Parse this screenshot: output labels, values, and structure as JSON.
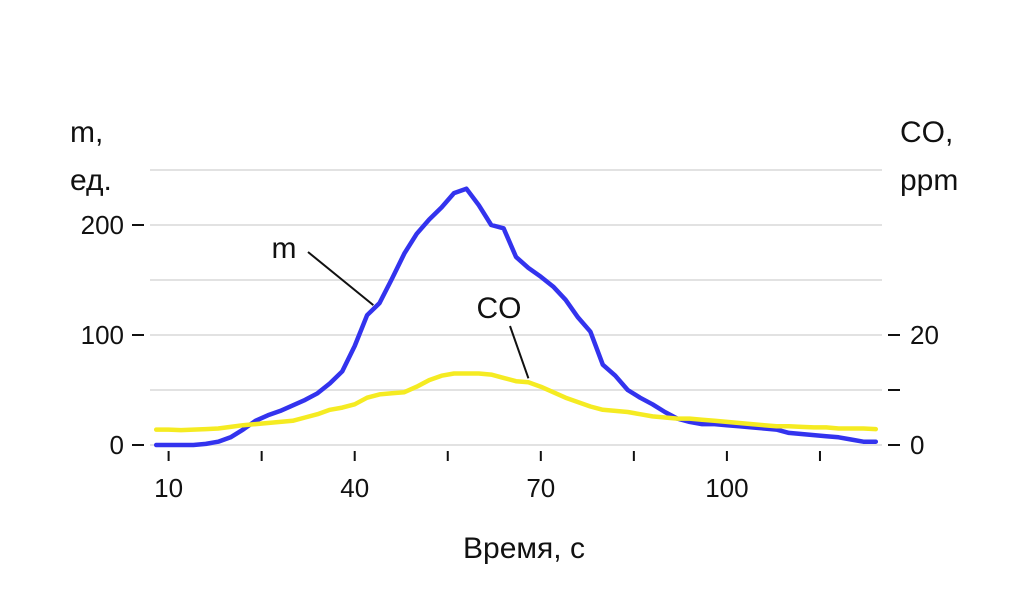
{
  "chart_data": {
    "type": "line",
    "xlabel": "Время, с",
    "ylabel_left": [
      "m,",
      "ед."
    ],
    "ylabel_right": [
      "CO,",
      "ppm"
    ],
    "xlim": [
      7,
      125
    ],
    "ylim_left": [
      0,
      250
    ],
    "ylim_right": [
      0,
      50
    ],
    "x_ticks": [
      10,
      25,
      40,
      55,
      70,
      85,
      100,
      115
    ],
    "x_tick_labels": [
      "10",
      "",
      "40",
      "",
      "70",
      "",
      "100",
      ""
    ],
    "y_left_ticks": [
      0,
      100,
      200
    ],
    "y_left_tick_labels": [
      "0",
      "100",
      "200"
    ],
    "y_right_ticks": [
      0,
      10,
      20
    ],
    "y_right_tick_labels": [
      "0",
      "",
      "20"
    ],
    "grid_left": [
      0,
      50,
      100,
      150,
      200,
      250
    ],
    "grid": true,
    "legend": "none",
    "series": [
      {
        "name": "m",
        "axis": "left",
        "color": "#3333ee",
        "x": [
          8,
          10,
          12,
          14,
          16,
          18,
          20,
          22,
          24,
          26,
          28,
          30,
          32,
          34,
          36,
          38,
          40,
          42,
          44,
          46,
          48,
          50,
          52,
          54,
          56,
          58,
          60,
          62,
          64,
          66,
          68,
          70,
          72,
          74,
          76,
          78,
          80,
          82,
          84,
          86,
          88,
          90,
          92,
          94,
          96,
          98,
          100,
          102,
          104,
          106,
          108,
          110,
          112,
          114,
          116,
          118,
          120,
          122,
          124
        ],
        "y": [
          0,
          0,
          0,
          0,
          1,
          3,
          7,
          14,
          22,
          27,
          31,
          36,
          41,
          47,
          56,
          67,
          90,
          118,
          129,
          151,
          174,
          192,
          205,
          216,
          229,
          233,
          218,
          200,
          197,
          171,
          161,
          153,
          144,
          132,
          116,
          103,
          73,
          63,
          50,
          43,
          37,
          30,
          24,
          21,
          19,
          19,
          18,
          17,
          16,
          15,
          14,
          11,
          10,
          9,
          8,
          7,
          5,
          3,
          3
        ]
      },
      {
        "name": "CO",
        "axis": "right",
        "color": "#f5eb22",
        "x": [
          8,
          10,
          12,
          14,
          16,
          18,
          20,
          22,
          24,
          26,
          28,
          30,
          32,
          34,
          36,
          38,
          40,
          42,
          44,
          46,
          48,
          50,
          52,
          54,
          56,
          58,
          60,
          62,
          64,
          66,
          68,
          70,
          72,
          74,
          76,
          78,
          80,
          82,
          84,
          86,
          88,
          90,
          92,
          94,
          96,
          98,
          100,
          102,
          104,
          106,
          108,
          110,
          112,
          114,
          116,
          118,
          120,
          122,
          124
        ],
        "y": [
          2.8,
          2.8,
          2.7,
          2.8,
          2.9,
          3.0,
          3.3,
          3.6,
          3.8,
          4.0,
          4.2,
          4.4,
          5.0,
          5.6,
          6.4,
          6.8,
          7.4,
          8.6,
          9.2,
          9.4,
          9.6,
          10.6,
          11.8,
          12.6,
          13.0,
          13.0,
          13.0,
          12.8,
          12.2,
          11.6,
          11.4,
          10.6,
          9.6,
          8.6,
          7.8,
          7.0,
          6.4,
          6.2,
          6.0,
          5.6,
          5.2,
          5.0,
          4.8,
          4.8,
          4.6,
          4.4,
          4.2,
          4.0,
          3.8,
          3.6,
          3.4,
          3.4,
          3.3,
          3.2,
          3.2,
          3.0,
          3.0,
          3.0,
          2.9
        ]
      }
    ],
    "annotations": [
      {
        "text": "m",
        "series": "m",
        "x": 43
      },
      {
        "text": "CO",
        "series": "CO",
        "x": 68
      }
    ]
  }
}
